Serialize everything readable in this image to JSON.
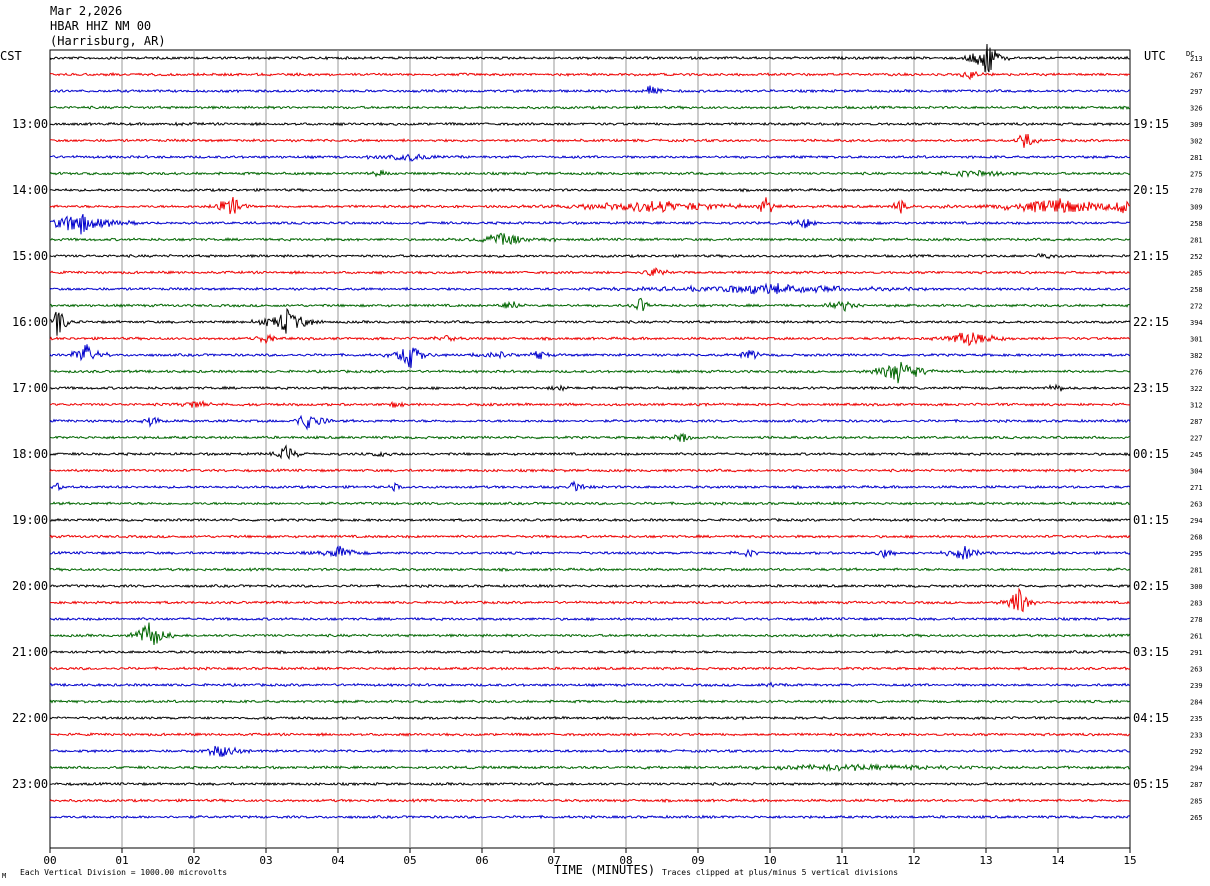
{
  "header": {
    "date": "Mar 2,2026",
    "station": "HBAR HHZ NM 00",
    "location": "(Harrisburg, AR)"
  },
  "left_tz": "CST",
  "right_tz": "UTC",
  "dc_label": "DC",
  "footer": {
    "scale": "Each Vertical Division = 1000.00 microvolts",
    "xlabel": "TIME (MINUTES)",
    "clip": "Traces clipped at plus/minus 5 vertical divisions"
  },
  "colors": {
    "black": "#000000",
    "red": "#ee0000",
    "blue": "#0000cc",
    "green": "#006600",
    "grid": "#9a9a9a"
  },
  "chart_data": {
    "type": "helicorder",
    "xlabel": "TIME (MINUTES)",
    "xlim": [
      0,
      15
    ],
    "x_ticks": [
      "00",
      "01",
      "02",
      "03",
      "04",
      "05",
      "06",
      "07",
      "08",
      "09",
      "10",
      "11",
      "12",
      "13",
      "14",
      "15"
    ],
    "left_hours": [
      "13:00",
      "14:00",
      "15:00",
      "16:00",
      "17:00",
      "18:00",
      "19:00",
      "20:00",
      "21:00",
      "22:00",
      "23:00"
    ],
    "right_hours": [
      "19:15",
      "20:15",
      "21:15",
      "22:15",
      "23:15",
      "00:15",
      "01:15",
      "02:15",
      "03:15",
      "04:15",
      "05:15"
    ],
    "trace_color_cycle": [
      "black",
      "red",
      "blue",
      "green"
    ],
    "dc_offsets": [
      213,
      267,
      297,
      326,
      309,
      302,
      281,
      275,
      270,
      309,
      258,
      281,
      252,
      285,
      258,
      272,
      394,
      301,
      382,
      276,
      322,
      312,
      287,
      227,
      245,
      304,
      271,
      263,
      294,
      268,
      295,
      281,
      300,
      283,
      278,
      261,
      291,
      263,
      239,
      284,
      235,
      233,
      292,
      294,
      287,
      285,
      265
    ],
    "events": [
      {
        "trace": 0,
        "minute": 13.0,
        "amp": 3.2,
        "dur": 0.35
      },
      {
        "trace": 1,
        "minute": 12.8,
        "amp": 0.8,
        "dur": 0.3
      },
      {
        "trace": 2,
        "minute": 8.35,
        "amp": 0.9,
        "dur": 0.25
      },
      {
        "trace": 4,
        "minute": 1.8,
        "amp": 0.3,
        "dur": 0.3
      },
      {
        "trace": 5,
        "minute": 13.55,
        "amp": 1.1,
        "dur": 0.3
      },
      {
        "trace": 6,
        "minute": 5.0,
        "amp": 0.5,
        "dur": 1.0
      },
      {
        "trace": 7,
        "minute": 4.6,
        "amp": 0.5,
        "dur": 0.3
      },
      {
        "trace": 7,
        "minute": 12.8,
        "amp": 0.5,
        "dur": 1.0
      },
      {
        "trace": 9,
        "minute": 2.5,
        "amp": 2.2,
        "dur": 0.3
      },
      {
        "trace": 9,
        "minute": 8.4,
        "amp": 0.8,
        "dur": 2.5
      },
      {
        "trace": 9,
        "minute": 9.95,
        "amp": 1.8,
        "dur": 0.2
      },
      {
        "trace": 9,
        "minute": 11.8,
        "amp": 1.5,
        "dur": 0.2
      },
      {
        "trace": 9,
        "minute": 14.0,
        "amp": 1.0,
        "dur": 2.0
      },
      {
        "trace": 9,
        "minute": 14.9,
        "amp": 1.6,
        "dur": 0.2
      },
      {
        "trace": 10,
        "minute": 0.4,
        "amp": 1.6,
        "dur": 0.9
      },
      {
        "trace": 10,
        "minute": 10.5,
        "amp": 0.8,
        "dur": 0.3
      },
      {
        "trace": 11,
        "minute": 6.3,
        "amp": 0.8,
        "dur": 1.0
      },
      {
        "trace": 12,
        "minute": 13.8,
        "amp": 0.5,
        "dur": 0.3
      },
      {
        "trace": 13,
        "minute": 8.4,
        "amp": 0.6,
        "dur": 0.5
      },
      {
        "trace": 14,
        "minute": 10.0,
        "amp": 0.7,
        "dur": 3.0
      },
      {
        "trace": 15,
        "minute": 6.4,
        "amp": 0.7,
        "dur": 0.4
      },
      {
        "trace": 15,
        "minute": 8.2,
        "amp": 1.2,
        "dur": 0.2
      },
      {
        "trace": 15,
        "minute": 11.0,
        "amp": 0.8,
        "dur": 0.5
      },
      {
        "trace": 16,
        "minute": 0.1,
        "amp": 2.2,
        "dur": 0.3
      },
      {
        "trace": 16,
        "minute": 3.3,
        "amp": 1.6,
        "dur": 0.6
      },
      {
        "trace": 17,
        "minute": 3.0,
        "amp": 1.0,
        "dur": 0.2
      },
      {
        "trace": 17,
        "minute": 5.5,
        "amp": 0.5,
        "dur": 0.3
      },
      {
        "trace": 17,
        "minute": 12.8,
        "amp": 1.2,
        "dur": 0.7
      },
      {
        "trace": 18,
        "minute": 0.5,
        "amp": 1.6,
        "dur": 0.4
      },
      {
        "trace": 18,
        "minute": 5.0,
        "amp": 1.8,
        "dur": 0.4
      },
      {
        "trace": 18,
        "minute": 6.2,
        "amp": 0.8,
        "dur": 0.4
      },
      {
        "trace": 18,
        "minute": 6.8,
        "amp": 0.7,
        "dur": 0.3
      },
      {
        "trace": 18,
        "minute": 9.7,
        "amp": 0.8,
        "dur": 0.3
      },
      {
        "trace": 19,
        "minute": 11.8,
        "amp": 1.8,
        "dur": 0.6
      },
      {
        "trace": 20,
        "minute": 7.1,
        "amp": 0.5,
        "dur": 0.3
      },
      {
        "trace": 20,
        "minute": 14.0,
        "amp": 0.5,
        "dur": 0.3
      },
      {
        "trace": 21,
        "minute": 2.0,
        "amp": 0.5,
        "dur": 0.5
      },
      {
        "trace": 21,
        "minute": 4.8,
        "amp": 0.5,
        "dur": 0.3
      },
      {
        "trace": 22,
        "minute": 1.4,
        "amp": 0.7,
        "dur": 0.3
      },
      {
        "trace": 22,
        "minute": 3.6,
        "amp": 1.2,
        "dur": 0.4
      },
      {
        "trace": 23,
        "minute": 8.8,
        "amp": 0.7,
        "dur": 0.3
      },
      {
        "trace": 24,
        "minute": 3.3,
        "amp": 1.3,
        "dur": 0.3
      },
      {
        "trace": 24,
        "minute": 4.6,
        "amp": 0.4,
        "dur": 0.3
      },
      {
        "trace": 26,
        "minute": 0.1,
        "amp": 0.5,
        "dur": 0.2
      },
      {
        "trace": 26,
        "minute": 4.8,
        "amp": 0.5,
        "dur": 0.2
      },
      {
        "trace": 26,
        "minute": 7.3,
        "amp": 0.7,
        "dur": 0.3
      },
      {
        "trace": 30,
        "minute": 4.0,
        "amp": 0.9,
        "dur": 0.5
      },
      {
        "trace": 30,
        "minute": 9.7,
        "amp": 0.5,
        "dur": 0.4
      },
      {
        "trace": 30,
        "minute": 11.6,
        "amp": 0.8,
        "dur": 0.3
      },
      {
        "trace": 30,
        "minute": 12.7,
        "amp": 0.9,
        "dur": 0.5
      },
      {
        "trace": 33,
        "minute": 13.45,
        "amp": 2.0,
        "dur": 0.35
      },
      {
        "trace": 35,
        "minute": 1.4,
        "amp": 2.6,
        "dur": 0.35
      },
      {
        "trace": 38,
        "minute": 10.0,
        "amp": 0.4,
        "dur": 0.3
      },
      {
        "trace": 42,
        "minute": 2.4,
        "amp": 0.9,
        "dur": 0.6
      },
      {
        "trace": 43,
        "minute": 11.0,
        "amp": 0.4,
        "dur": 4.0
      }
    ]
  }
}
